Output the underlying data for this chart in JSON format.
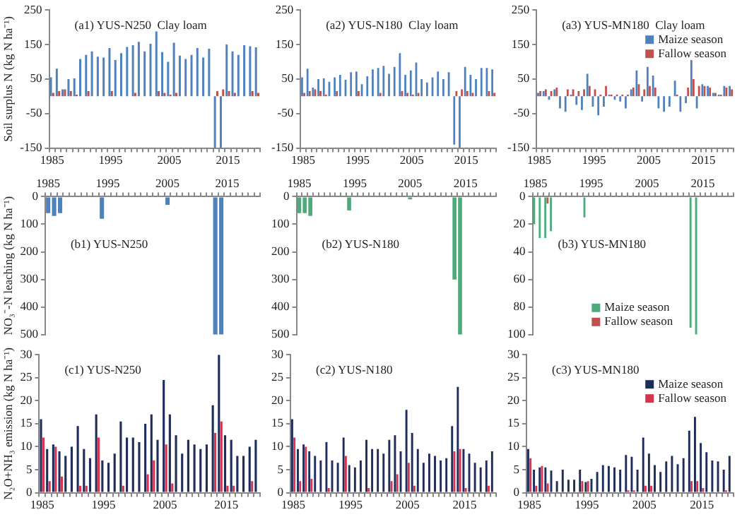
{
  "chart_data": [
    {
      "type": "bar",
      "title": "(a1) YUS-N250  Clay loam",
      "ylabel": "Soil surplus N (kg N ha⁻¹)",
      "categories": [
        "1985",
        null,
        null,
        null,
        null,
        null,
        null,
        null,
        null,
        null,
        "1995",
        null,
        null,
        null,
        null,
        null,
        null,
        null,
        null,
        null,
        "2005",
        null,
        null,
        null,
        null,
        null,
        null,
        null,
        null,
        null,
        "2015",
        null,
        null,
        null,
        null,
        null
      ],
      "ylim": [
        -150,
        250
      ],
      "yticks": [
        -150,
        -50,
        50,
        150,
        250
      ],
      "series": [
        {
          "color": "#4f81bd",
          "values": [
            55,
            80,
            20,
            50,
            52,
            108,
            120,
            130,
            115,
            112,
            140,
            105,
            125,
            143,
            148,
            158,
            130,
            152,
            188,
            128,
            100,
            155,
            118,
            108,
            120,
            140,
            112,
            138,
            -150,
            -150,
            150,
            130,
            120,
            148,
            145,
            142
          ]
        },
        {
          "color": "#c0504d",
          "values": [
            10,
            15,
            20,
            15,
            5,
            0,
            15,
            0,
            0,
            0,
            15,
            0,
            0,
            0,
            10,
            0,
            0,
            0,
            15,
            10,
            5,
            10,
            0,
            0,
            0,
            0,
            0,
            0,
            15,
            20,
            15,
            10,
            0,
            0,
            15,
            10
          ]
        }
      ]
    },
    {
      "type": "bar",
      "title": "(a2) YUS-N180  Clay loam",
      "categories": [
        "1985",
        null,
        null,
        null,
        null,
        null,
        null,
        null,
        null,
        null,
        "1995",
        null,
        null,
        null,
        null,
        null,
        null,
        null,
        null,
        null,
        "2005",
        null,
        null,
        null,
        null,
        null,
        null,
        null,
        null,
        null,
        "2015",
        null,
        null,
        null,
        null,
        null
      ],
      "ylim": [
        -150,
        250
      ],
      "yticks": [
        -150,
        -50,
        50,
        150,
        250
      ],
      "series": [
        {
          "color": "#4f81bd",
          "values": [
            55,
            80,
            25,
            50,
            52,
            42,
            55,
            62,
            48,
            70,
            72,
            35,
            58,
            78,
            82,
            88,
            65,
            85,
            125,
            62,
            75,
            98,
            50,
            40,
            55,
            72,
            50,
            70,
            -140,
            -150,
            85,
            62,
            50,
            82,
            82,
            78
          ]
        },
        {
          "color": "#c0504d",
          "values": [
            10,
            15,
            20,
            15,
            5,
            0,
            15,
            0,
            0,
            0,
            15,
            0,
            0,
            0,
            10,
            0,
            0,
            0,
            15,
            10,
            5,
            10,
            0,
            0,
            0,
            0,
            0,
            0,
            15,
            20,
            15,
            10,
            0,
            0,
            15,
            10
          ]
        }
      ]
    },
    {
      "type": "bar",
      "title": "(a3) YUS-MN180  Clay loam",
      "legend": "top right",
      "categories": [
        "1985",
        null,
        null,
        null,
        null,
        null,
        null,
        null,
        null,
        null,
        "1995",
        null,
        null,
        null,
        null,
        null,
        null,
        null,
        null,
        null,
        "2005",
        null,
        null,
        null,
        null,
        null,
        null,
        null,
        null,
        null,
        "2015",
        null,
        null,
        null,
        null,
        null
      ],
      "ylim": [
        -150,
        250
      ],
      "yticks": [
        -150,
        -50,
        50,
        150,
        250
      ],
      "series": [
        {
          "name": "Maize season",
          "color": "#4f81bd",
          "values": [
            10,
            15,
            -10,
            20,
            -35,
            -45,
            5,
            -25,
            -40,
            65,
            -30,
            -55,
            -30,
            5,
            -10,
            -15,
            -35,
            20,
            75,
            -15,
            85,
            60,
            -35,
            -45,
            -30,
            45,
            -45,
            -20,
            105,
            -35,
            35,
            30,
            10,
            5,
            30,
            30
          ]
        },
        {
          "name": "Fallow season",
          "color": "#c0504d",
          "values": [
            15,
            20,
            15,
            25,
            0,
            20,
            20,
            15,
            20,
            30,
            20,
            5,
            30,
            5,
            5,
            5,
            5,
            25,
            35,
            20,
            30,
            25,
            0,
            0,
            0,
            5,
            0,
            25,
            50,
            30,
            30,
            25,
            10,
            5,
            25,
            20
          ]
        }
      ]
    },
    {
      "type": "bar",
      "title": "(b1) YUS-N250",
      "ylabel": "NO₃⁻-N leaching (kg N ha⁻¹)",
      "categories": [
        "1985",
        null,
        null,
        null,
        null,
        null,
        null,
        null,
        null,
        null,
        "1995",
        null,
        null,
        null,
        null,
        null,
        null,
        null,
        null,
        null,
        "2005",
        null,
        null,
        null,
        null,
        null,
        null,
        null,
        null,
        null,
        "2015",
        null,
        null,
        null,
        null,
        null
      ],
      "ylim": [
        500,
        0
      ],
      "yticks": [
        0,
        100,
        200,
        300,
        400,
        500
      ],
      "series": [
        {
          "color": "#4f81bd",
          "values": [
            60,
            70,
            60,
            0,
            0,
            0,
            0,
            0,
            0,
            80,
            0,
            0,
            0,
            0,
            0,
            0,
            0,
            0,
            0,
            0,
            30,
            0,
            0,
            0,
            0,
            0,
            0,
            0,
            500,
            500,
            0,
            0,
            0,
            0,
            0,
            0
          ]
        }
      ]
    },
    {
      "type": "bar",
      "title": "(b2) YUS-N180",
      "categories": [
        "1985",
        null,
        null,
        null,
        null,
        null,
        null,
        null,
        null,
        null,
        "1995",
        null,
        null,
        null,
        null,
        null,
        null,
        null,
        null,
        null,
        "2005",
        null,
        null,
        null,
        null,
        null,
        null,
        null,
        null,
        null,
        "2015",
        null,
        null,
        null,
        null,
        null
      ],
      "ylim": [
        500,
        0
      ],
      "yticks": [
        0,
        100,
        200,
        300,
        400,
        500
      ],
      "series": [
        {
          "color": "#4daa7a",
          "values": [
            60,
            60,
            70,
            0,
            0,
            0,
            0,
            0,
            0,
            50,
            0,
            0,
            0,
            0,
            0,
            0,
            0,
            0,
            0,
            0,
            10,
            0,
            0,
            0,
            0,
            0,
            0,
            0,
            300,
            500,
            0,
            0,
            0,
            0,
            0,
            0
          ]
        }
      ]
    },
    {
      "type": "bar",
      "title": "(b3) YUS-MN180",
      "legend": "bottom",
      "categories": [
        "1985",
        null,
        null,
        null,
        null,
        null,
        null,
        null,
        null,
        null,
        "1995",
        null,
        null,
        null,
        null,
        null,
        null,
        null,
        null,
        null,
        "2005",
        null,
        null,
        null,
        null,
        null,
        null,
        null,
        null,
        null,
        "2015",
        null,
        null,
        null,
        null,
        null
      ],
      "ylim": [
        100,
        0
      ],
      "yticks": [
        0,
        20,
        40,
        60,
        80,
        100
      ],
      "series": [
        {
          "name": "Maize season",
          "color": "#4daa7a",
          "values": [
            20,
            30,
            30,
            25,
            0,
            0,
            0,
            0,
            0,
            15,
            0,
            0,
            0,
            0,
            0,
            0,
            0,
            0,
            0,
            0,
            0,
            0,
            0,
            0,
            0,
            0,
            0,
            0,
            95,
            100,
            0,
            0,
            0,
            0,
            0,
            0
          ]
        },
        {
          "name": "Fallow season",
          "color": "#c0504d",
          "values": [
            0,
            0,
            5,
            0,
            0,
            0,
            0,
            0,
            0,
            0,
            0,
            0,
            0,
            0,
            0,
            0,
            0,
            0,
            0,
            0,
            0,
            0,
            0,
            0,
            0,
            0,
            0,
            0,
            0,
            0,
            0,
            0,
            0,
            0,
            0,
            0
          ]
        }
      ]
    },
    {
      "type": "bar",
      "title": "(c1) YUS-N250",
      "ylabel": "N₂O+NH₃ emission (kg N ha⁻¹)",
      "categories": [
        "1985",
        null,
        null,
        null,
        null,
        null,
        null,
        null,
        null,
        null,
        "1995",
        null,
        null,
        null,
        null,
        null,
        null,
        null,
        null,
        null,
        "2005",
        null,
        null,
        null,
        null,
        null,
        null,
        null,
        null,
        null,
        "2015",
        null,
        null,
        null,
        null,
        null
      ],
      "ylim": [
        0,
        30
      ],
      "yticks": [
        0,
        5,
        10,
        15,
        20,
        25,
        30
      ],
      "series": [
        {
          "color": "#1f2d5a",
          "values": [
            16,
            9.5,
            10.5,
            9,
            8,
            10,
            14.5,
            9.5,
            7.5,
            17,
            7,
            6.5,
            8.5,
            15.5,
            12,
            12,
            11,
            15,
            17,
            11.5,
            24.5,
            17,
            12.5,
            8.5,
            11.5,
            10.5,
            9.5,
            10.5,
            19,
            30,
            12.5,
            11.5,
            8,
            8,
            10,
            11.5
          ]
        },
        {
          "color": "#d9344f",
          "values": [
            12,
            2.5,
            10,
            3.5,
            0,
            0,
            1.5,
            1.5,
            0,
            12,
            0,
            0,
            0,
            1.5,
            0,
            0,
            0,
            4,
            7,
            0,
            10.5,
            2,
            0,
            0,
            0,
            0,
            0,
            0,
            13,
            15.5,
            1.5,
            1.5,
            0,
            0,
            2.5,
            0
          ]
        }
      ]
    },
    {
      "type": "bar",
      "title": "(c2) YUS-N180",
      "categories": [
        "1985",
        null,
        null,
        null,
        null,
        null,
        null,
        null,
        null,
        null,
        "1995",
        null,
        null,
        null,
        null,
        null,
        null,
        null,
        null,
        null,
        "2005",
        null,
        null,
        null,
        null,
        null,
        null,
        null,
        null,
        null,
        "2015",
        null,
        null,
        null,
        null,
        null
      ],
      "ylim": [
        0,
        30
      ],
      "yticks": [
        0,
        5,
        10,
        15,
        20,
        25,
        30
      ],
      "series": [
        {
          "color": "#1f2d5a",
          "values": [
            16,
            9.5,
            10.5,
            9,
            8,
            7,
            11,
            7,
            6.5,
            12,
            6,
            5.5,
            7,
            11.5,
            9.5,
            9.5,
            8.5,
            11.5,
            12.5,
            9,
            18,
            13,
            9.5,
            6.5,
            8.5,
            8,
            7,
            7.5,
            14.5,
            23,
            9.5,
            8.5,
            6.5,
            5.5,
            7,
            9
          ]
        },
        {
          "color": "#d9344f",
          "values": [
            12,
            2.5,
            10,
            3,
            0,
            0,
            1,
            0,
            0,
            8,
            0,
            0,
            0,
            1,
            0,
            0,
            0,
            2.5,
            4,
            0,
            6.5,
            1.5,
            0,
            0,
            0,
            0,
            0,
            0,
            9,
            9.5,
            1,
            0,
            0,
            0,
            1.5,
            0
          ]
        }
      ]
    },
    {
      "type": "bar",
      "title": "(c3) YUS-MN180",
      "legend": "top right",
      "categories": [
        "1985",
        null,
        null,
        null,
        null,
        null,
        null,
        null,
        null,
        null,
        "1995",
        null,
        null,
        null,
        null,
        null,
        null,
        null,
        null,
        null,
        "2005",
        null,
        null,
        null,
        null,
        null,
        null,
        null,
        null,
        null,
        "2015",
        null,
        null,
        null,
        null,
        null
      ],
      "ylim": [
        0,
        30
      ],
      "yticks": [
        0,
        5,
        10,
        15,
        20,
        25,
        30
      ],
      "series": [
        {
          "name": "Maize season",
          "color": "#1f2d5a",
          "values": [
            9.5,
            5,
            5.5,
            5.5,
            4.8,
            2.5,
            5,
            2.8,
            2.8,
            5,
            2.3,
            3,
            4.5,
            6,
            5.8,
            5.5,
            5,
            8.2,
            7.8,
            5,
            12,
            8.5,
            6,
            4.5,
            6.8,
            8,
            6.2,
            7.5,
            13.5,
            16.5,
            10.8,
            8.8,
            7,
            6.8,
            5,
            8
          ]
        },
        {
          "name": "Fallow season",
          "color": "#d9344f",
          "values": [
            7.5,
            1.5,
            5.8,
            2,
            0,
            0,
            0,
            0,
            0,
            2.5,
            2.5,
            0,
            0,
            0,
            0,
            0,
            0,
            0.5,
            0.5,
            0,
            1.5,
            1.5,
            0,
            0,
            0,
            0,
            0,
            0,
            2.5,
            2.5,
            1,
            0,
            0,
            0,
            0.5,
            0
          ]
        }
      ]
    }
  ]
}
